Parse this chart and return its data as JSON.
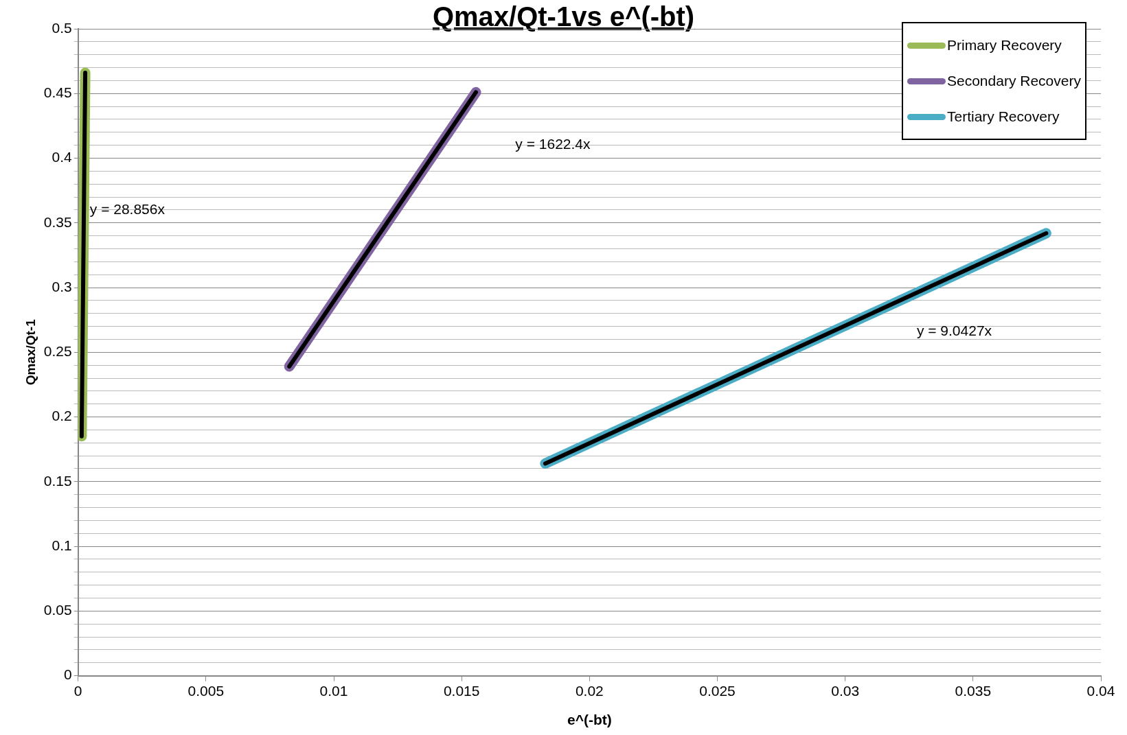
{
  "chart_data": {
    "type": "line",
    "title": "Qmax/Qt-1vs e^(-bt)",
    "xlabel": "e^(-bt)",
    "ylabel": "Qmax/Qt-1",
    "xlim": [
      0,
      0.04
    ],
    "xticks": [
      0,
      0.005,
      0.01,
      0.015,
      0.02,
      0.025,
      0.03,
      0.035,
      0.04
    ],
    "ylim": [
      0,
      0.5
    ],
    "yticks": [
      0,
      {
        "value": 0.01,
        "label": null
      },
      {
        "value": 0.02,
        "label": null
      },
      {
        "value": 0.03,
        "label": null
      },
      {
        "value": 0.04,
        "label": null
      },
      0.05,
      {
        "value": 0.06,
        "label": null
      },
      {
        "value": 0.07,
        "label": null
      },
      {
        "value": 0.08,
        "label": null
      },
      {
        "value": 0.09,
        "label": null
      },
      0.1,
      {
        "value": 0.11,
        "label": null
      },
      {
        "value": 0.12,
        "label": null
      },
      {
        "value": 0.13,
        "label": null
      },
      {
        "value": 0.14,
        "label": null
      },
      0.15,
      {
        "value": 0.16,
        "label": null
      },
      {
        "value": 0.17,
        "label": null
      },
      {
        "value": 0.18,
        "label": null
      },
      {
        "value": 0.19,
        "label": null
      },
      0.2,
      {
        "value": 0.21,
        "label": null
      },
      {
        "value": 0.22,
        "label": null
      },
      {
        "value": 0.23,
        "label": null
      },
      {
        "value": 0.24,
        "label": null
      },
      0.25,
      {
        "value": 0.26,
        "label": null
      },
      {
        "value": 0.27,
        "label": null
      },
      {
        "value": 0.28,
        "label": null
      },
      {
        "value": 0.29,
        "label": null
      },
      0.3,
      {
        "value": 0.31,
        "label": null
      },
      {
        "value": 0.32,
        "label": null
      },
      {
        "value": 0.33,
        "label": null
      },
      {
        "value": 0.34,
        "label": null
      },
      0.35,
      {
        "value": 0.36,
        "label": null
      },
      {
        "value": 0.37,
        "label": null
      },
      {
        "value": 0.38,
        "label": null
      },
      {
        "value": 0.39,
        "label": null
      },
      0.4,
      {
        "value": 0.41,
        "label": null
      },
      {
        "value": 0.42,
        "label": null
      },
      {
        "value": 0.43,
        "label": null
      },
      {
        "value": 0.44,
        "label": null
      },
      0.45,
      {
        "value": 0.46,
        "label": null
      },
      {
        "value": 0.47,
        "label": null
      },
      {
        "value": 0.48,
        "label": null
      },
      {
        "value": 0.49,
        "label": null
      },
      0.5
    ],
    "grid": "y",
    "legend": "top right",
    "marker": "none",
    "line_style": "solid",
    "series": [
      {
        "name": "Primary Recovery",
        "color": "#9bbb59",
        "x": [
          0.00014,
          0.00028
        ],
        "values": [
          0.185,
          0.466
        ]
      },
      {
        "name": "Secondary Recovery",
        "color": "#8064a2",
        "x": [
          0.00826,
          0.01305,
          0.01556
        ],
        "values": [
          0.239,
          0.378,
          0.451
        ]
      },
      {
        "name": "Tertiary Recovery",
        "color": "#4bacc6",
        "x": [
          0.01827,
          0.03786
        ],
        "values": [
          0.164,
          0.342
        ]
      },
      {
        "color": "#000000",
        "x": [
          0.00014,
          0.00028
        ],
        "values": [
          0.185,
          0.466
        ]
      },
      {
        "color": "#000000",
        "x": [
          0.00826,
          0.01556
        ],
        "values": [
          0.239,
          0.451
        ]
      },
      {
        "color": "#000000",
        "x": [
          0.01827,
          0.03786
        ],
        "values": [
          0.164,
          0.342
        ]
      }
    ],
    "annotations": [
      "y = 28.856x",
      "y = 1622.4x",
      "y = 9.0427x"
    ]
  }
}
